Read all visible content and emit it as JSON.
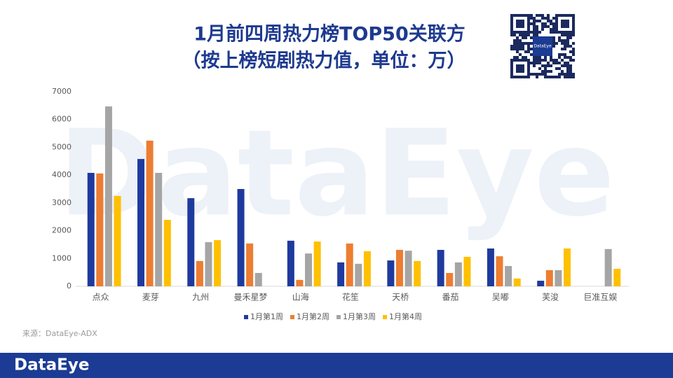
{
  "chart_data": {
    "type": "bar",
    "title": "1月前四周热力榜TOP50关联方",
    "subtitle": "（按上榜短剧热力值，单位：万）",
    "source": "来源：DataEye-ADX",
    "categories": [
      "点众",
      "麦芽",
      "九州",
      "曼禾星梦",
      "山海",
      "花笙",
      "天桥",
      "番茄",
      "吴嘟",
      "芙浚",
      "巨准互娱"
    ],
    "series": [
      {
        "name": "1月第1周",
        "color": "#1f3a9e",
        "values": [
          4080,
          4580,
          3170,
          3500,
          1640,
          860,
          930,
          1310,
          1360,
          200,
          null
        ]
      },
      {
        "name": "1月第2周",
        "color": "#ed7d31",
        "values": [
          4060,
          5240,
          910,
          1540,
          230,
          1540,
          1310,
          480,
          1080,
          580,
          null
        ]
      },
      {
        "name": "1月第3周",
        "color": "#a5a5a5",
        "values": [
          6470,
          4080,
          1590,
          480,
          1180,
          810,
          1280,
          860,
          730,
          580,
          1340
        ]
      },
      {
        "name": "1月第4周",
        "color": "#ffc000",
        "values": [
          3250,
          2390,
          1660,
          null,
          1610,
          1260,
          910,
          1060,
          280,
          1360,
          630
        ]
      }
    ],
    "ylim": [
      0,
      7000
    ],
    "yticks": [
      0,
      1000,
      2000,
      3000,
      4000,
      5000,
      6000,
      7000
    ],
    "grid": false,
    "legend": "bottom"
  },
  "watermark": "DataEye",
  "footer": {
    "logo": "DataEye"
  }
}
